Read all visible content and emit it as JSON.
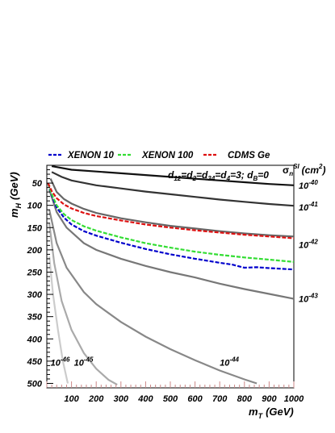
{
  "chart_data": {
    "type": "line",
    "xlabel": "m",
    "xlabel_sub": "T",
    "xlabel_unit": "(GeV)",
    "ylabel": "m",
    "ylabel_sub": "H",
    "ylabel_unit": "(GeV)",
    "right_axis_label": "σn SI (cm2)",
    "right_axis_label_parts": {
      "sigma": "σ",
      "sub": "n",
      "sup": "SI",
      "unit": "(cm",
      "unit_exp": "2",
      "unit_close": ")"
    },
    "annotation": "d12=d2=d34=d4=3; dB=0",
    "annotation_parts": [
      "d",
      "12",
      "=d",
      "2",
      "=d",
      "34",
      "=d",
      "4",
      "=3; d",
      "B",
      "=0"
    ],
    "xlim": [
      0,
      1000
    ],
    "ylim": [
      510,
      10
    ],
    "y_inverted": true,
    "x_ticks": [
      100,
      200,
      300,
      400,
      500,
      600,
      700,
      800,
      900,
      1000
    ],
    "y_ticks": [
      50,
      100,
      150,
      200,
      250,
      300,
      350,
      400,
      450,
      500
    ],
    "grid": false,
    "legend_position": "top",
    "legend": [
      {
        "label": "XENON 10",
        "color": "#0000cc",
        "style": "dashed"
      },
      {
        "label": "XENON 100",
        "color": "#33dd33",
        "style": "dashed"
      },
      {
        "label": "CDMS Ge",
        "color": "#dd1111",
        "style": "dashed"
      }
    ],
    "series": [
      {
        "name": "XENON 10",
        "color": "#0000cc",
        "style": "dashed",
        "x": [
          5,
          20,
          40,
          70,
          100,
          150,
          200,
          300,
          400,
          500,
          600,
          700,
          750,
          800,
          850,
          900,
          1000
        ],
        "y": [
          50,
          78,
          105,
          128,
          143,
          158,
          168,
          184,
          198,
          210,
          220,
          229,
          233,
          240,
          239,
          241,
          244
        ]
      },
      {
        "name": "XENON 100",
        "color": "#33dd33",
        "style": "dashed",
        "x": [
          5,
          20,
          40,
          70,
          100,
          150,
          200,
          300,
          400,
          500,
          600,
          700,
          800,
          900,
          1000
        ],
        "y": [
          50,
          75,
          100,
          120,
          133,
          147,
          157,
          172,
          185,
          195,
          204,
          211,
          217,
          222,
          227
        ]
      },
      {
        "name": "CDMS Ge",
        "color": "#dd1111",
        "style": "dashed",
        "x": [
          5,
          20,
          40,
          70,
          100,
          150,
          200,
          300,
          400,
          500,
          600,
          700,
          800,
          900,
          1000
        ],
        "y": [
          50,
          68,
          84,
          98,
          107,
          117,
          124,
          134,
          143,
          150,
          156,
          161,
          166,
          170,
          174
        ]
      }
    ],
    "contours": [
      {
        "label": "10",
        "exp": "-40",
        "color": "#111111",
        "width": 2.2,
        "x": [
          20,
          100,
          200,
          300,
          400,
          500,
          600,
          700,
          800,
          900,
          1000
        ],
        "y": [
          12,
          20,
          24,
          28,
          32,
          36,
          40,
          44,
          48,
          52,
          55
        ]
      },
      {
        "label": "10",
        "exp": "-41",
        "color": "#333333",
        "width": 2.2,
        "x": [
          20,
          60,
          100,
          200,
          300,
          400,
          500,
          600,
          700,
          800,
          900,
          1000
        ],
        "y": [
          25,
          36,
          44,
          55,
          62,
          69,
          75,
          81,
          87,
          92,
          97,
          101
        ]
      },
      {
        "label": "10",
        "exp": "-42",
        "color": "#666666",
        "width": 2.2,
        "x": [
          15,
          40,
          70,
          100,
          150,
          200,
          300,
          400,
          500,
          600,
          700,
          800,
          900,
          1000
        ],
        "y": [
          40,
          70,
          86,
          96,
          108,
          117,
          129,
          138,
          146,
          152,
          158,
          163,
          167,
          170
        ]
      },
      {
        "label": "10",
        "exp": "-43",
        "color": "#777777",
        "width": 2.2,
        "x": [
          10,
          40,
          80,
          150,
          200,
          300,
          400,
          500,
          600,
          700,
          800,
          900,
          1000
        ],
        "y": [
          65,
          115,
          150,
          185,
          200,
          220,
          236,
          250,
          262,
          276,
          288,
          299,
          310
        ]
      },
      {
        "label": "10",
        "exp": "-44",
        "color": "#888888",
        "width": 2.2,
        "x": [
          10,
          40,
          80,
          150,
          200,
          300,
          400,
          500,
          600,
          700,
          800,
          850
        ],
        "y": [
          110,
          185,
          240,
          295,
          322,
          362,
          395,
          423,
          448,
          471,
          491,
          500
        ]
      },
      {
        "label": "10",
        "exp": "-45",
        "color": "#aaaaaa",
        "width": 2.2,
        "x": [
          10,
          30,
          60,
          100,
          150,
          200,
          250,
          285
        ],
        "y": [
          140,
          230,
          315,
          380,
          432,
          467,
          492,
          503
        ]
      },
      {
        "label": "10",
        "exp": "-46",
        "color": "#cccccc",
        "width": 2.2,
        "x": [
          10,
          25,
          45,
          65,
          85
        ],
        "y": [
          215,
          300,
          380,
          450,
          500
        ]
      }
    ],
    "contour_label_positions_note": "right-edge labels for -40..-43, in-plot labels for -44..-46"
  }
}
